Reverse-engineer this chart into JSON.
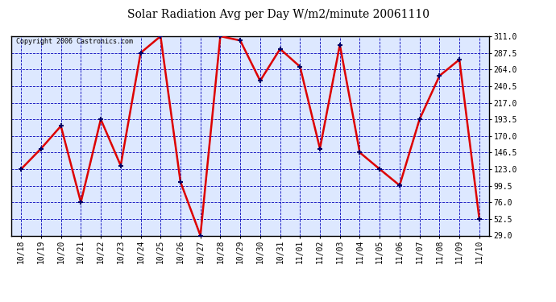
{
  "title": "Solar Radiation Avg per Day W/m2/minute 20061110",
  "copyright": "Copyright 2006 Castronics.com",
  "x_labels": [
    "10/18",
    "10/19",
    "10/20",
    "10/21",
    "10/22",
    "10/23",
    "10/24",
    "10/25",
    "10/26",
    "10/27",
    "10/28",
    "10/29",
    "10/30",
    "10/31",
    "11/01",
    "11/02",
    "11/03",
    "11/04",
    "11/05",
    "11/06",
    "11/07",
    "11/08",
    "11/09",
    "11/10"
  ],
  "y_values": [
    123.0,
    152.0,
    184.0,
    76.0,
    193.5,
    128.0,
    287.5,
    311.0,
    105.0,
    29.0,
    311.0,
    305.0,
    248.0,
    293.0,
    268.0,
    152.0,
    299.0,
    146.5,
    123.0,
    100.0,
    193.5,
    255.0,
    278.0,
    52.5
  ],
  "line_color": "#dd0000",
  "marker_color": "#000066",
  "bg_color": "#ffffff",
  "plot_bg_color": "#dde8ff",
  "grid_color": "#0000bb",
  "title_color": "#000000",
  "copyright_color": "#000000",
  "y_min": 29.0,
  "y_max": 311.0,
  "y_ticks": [
    29.0,
    52.5,
    76.0,
    99.5,
    123.0,
    146.5,
    170.0,
    193.5,
    217.0,
    240.5,
    264.0,
    287.5,
    311.0
  ],
  "border_color": "#000000",
  "title_fontsize": 10,
  "tick_fontsize": 7,
  "copyright_fontsize": 6
}
